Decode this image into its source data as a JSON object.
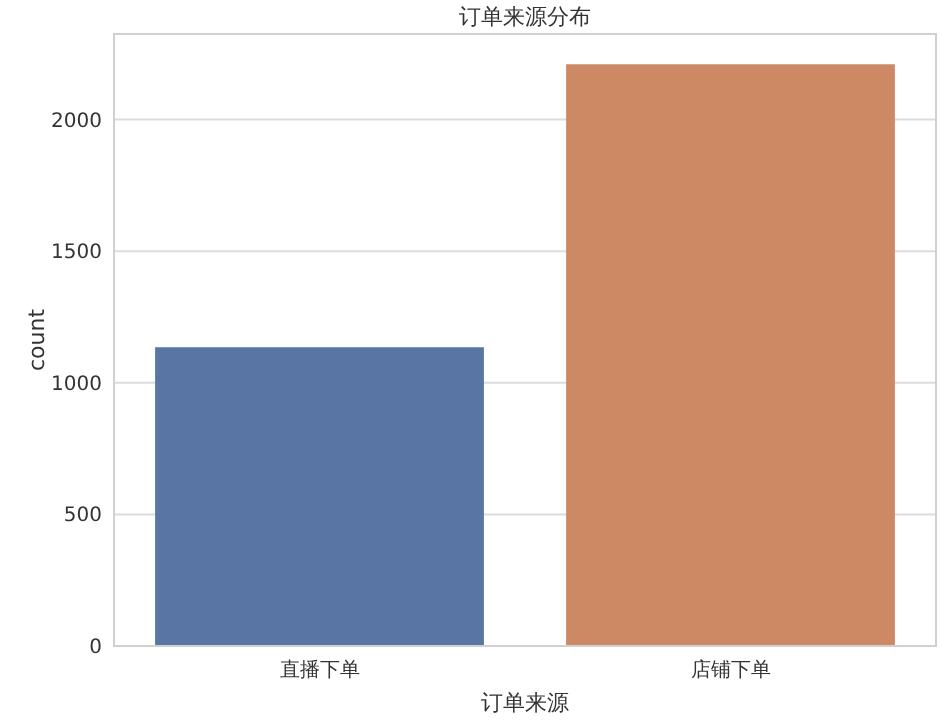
{
  "chart_data": {
    "type": "bar",
    "title": "订单来源分布",
    "xlabel": "订单来源",
    "ylabel": "count",
    "categories": [
      "直播下单",
      "店铺下单"
    ],
    "values": [
      1135,
      2210
    ],
    "colors": [
      "#5875a4",
      "#cc8963"
    ],
    "ylim": [
      0,
      2325
    ],
    "yticks": [
      0,
      500,
      1000,
      1500,
      2000
    ],
    "grid": "y"
  }
}
